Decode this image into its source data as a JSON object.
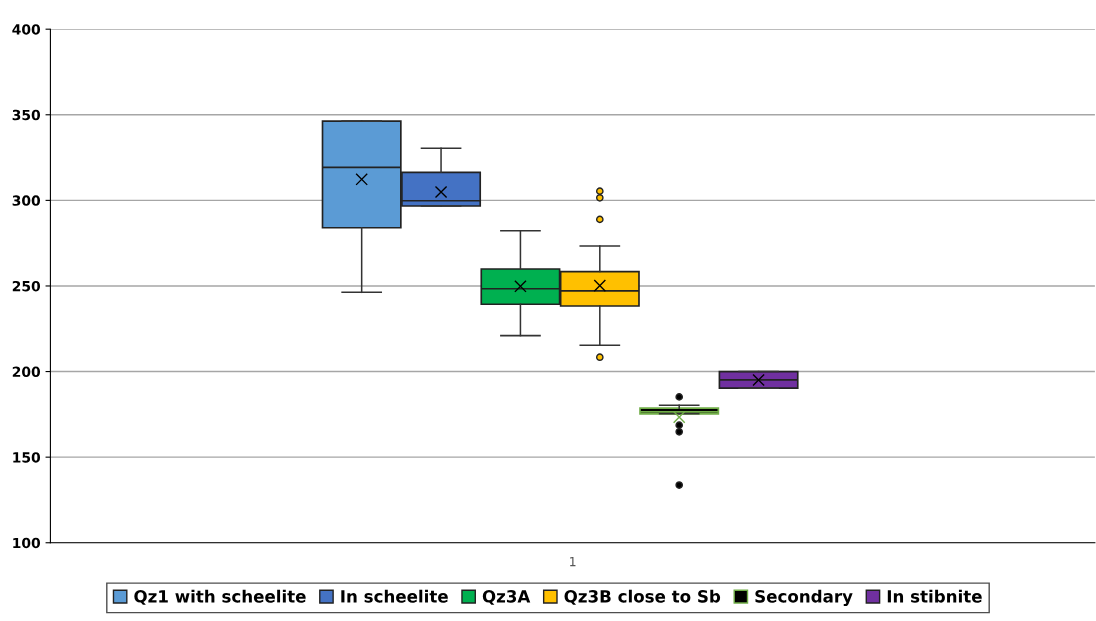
{
  "chart_data": {
    "type": "box",
    "categories": [
      "1"
    ],
    "ylim": [
      100,
      400
    ],
    "yticks": [
      100,
      150,
      200,
      250,
      300,
      350,
      400
    ],
    "grid": "y",
    "legend": "bottom",
    "marker": "cross",
    "series": [
      {
        "name": "Qz1 with scheelite",
        "color": "#5b9bd5",
        "boxes": [
          {
            "low": 246.3,
            "q1": 284,
            "median": 319.3,
            "q3": 346.3,
            "high": 346.3,
            "mean": 312.3
          }
        ]
      },
      {
        "name": "In scheelite",
        "color": "#4472c4",
        "boxes": [
          {
            "low": 296.7,
            "q1": 296.7,
            "median": 299.8,
            "q3": 316.4,
            "high": 330.5,
            "mean": 304.9
          }
        ]
      },
      {
        "name": "Qz3A",
        "color": "#00b050",
        "boxes": [
          {
            "low": 221,
            "q1": 239.3,
            "median": 248.4,
            "q3": 259.9,
            "high": 282.3,
            "mean": 249.8
          }
        ]
      },
      {
        "name": "Qz3B close to Sb",
        "color": "#ffc000",
        "boxes": [
          {
            "low": 215.4,
            "q1": 238.3,
            "median": 247.1,
            "q3": 258.4,
            "high": 273.3,
            "mean": 250.2,
            "outliers": [
              305.4,
              301.5,
              288.9,
              208.4
            ]
          }
        ]
      },
      {
        "name": "Secondary",
        "color": "#000000",
        "boxes": [
          {
            "low": 175.3,
            "q1": 175.3,
            "median": 176.5,
            "q3": 178.6,
            "high": 180.3,
            "mean": 173.4,
            "outliers": [
              185.2,
              168.7,
              164.8,
              133.7
            ]
          }
        ]
      },
      {
        "name": "In stibnite",
        "color": "#7030a0",
        "boxes": [
          {
            "low": 190.3,
            "q1": 190.3,
            "median": 195.1,
            "q3": 200,
            "high": 200,
            "mean": 195.1
          }
        ]
      }
    ]
  }
}
